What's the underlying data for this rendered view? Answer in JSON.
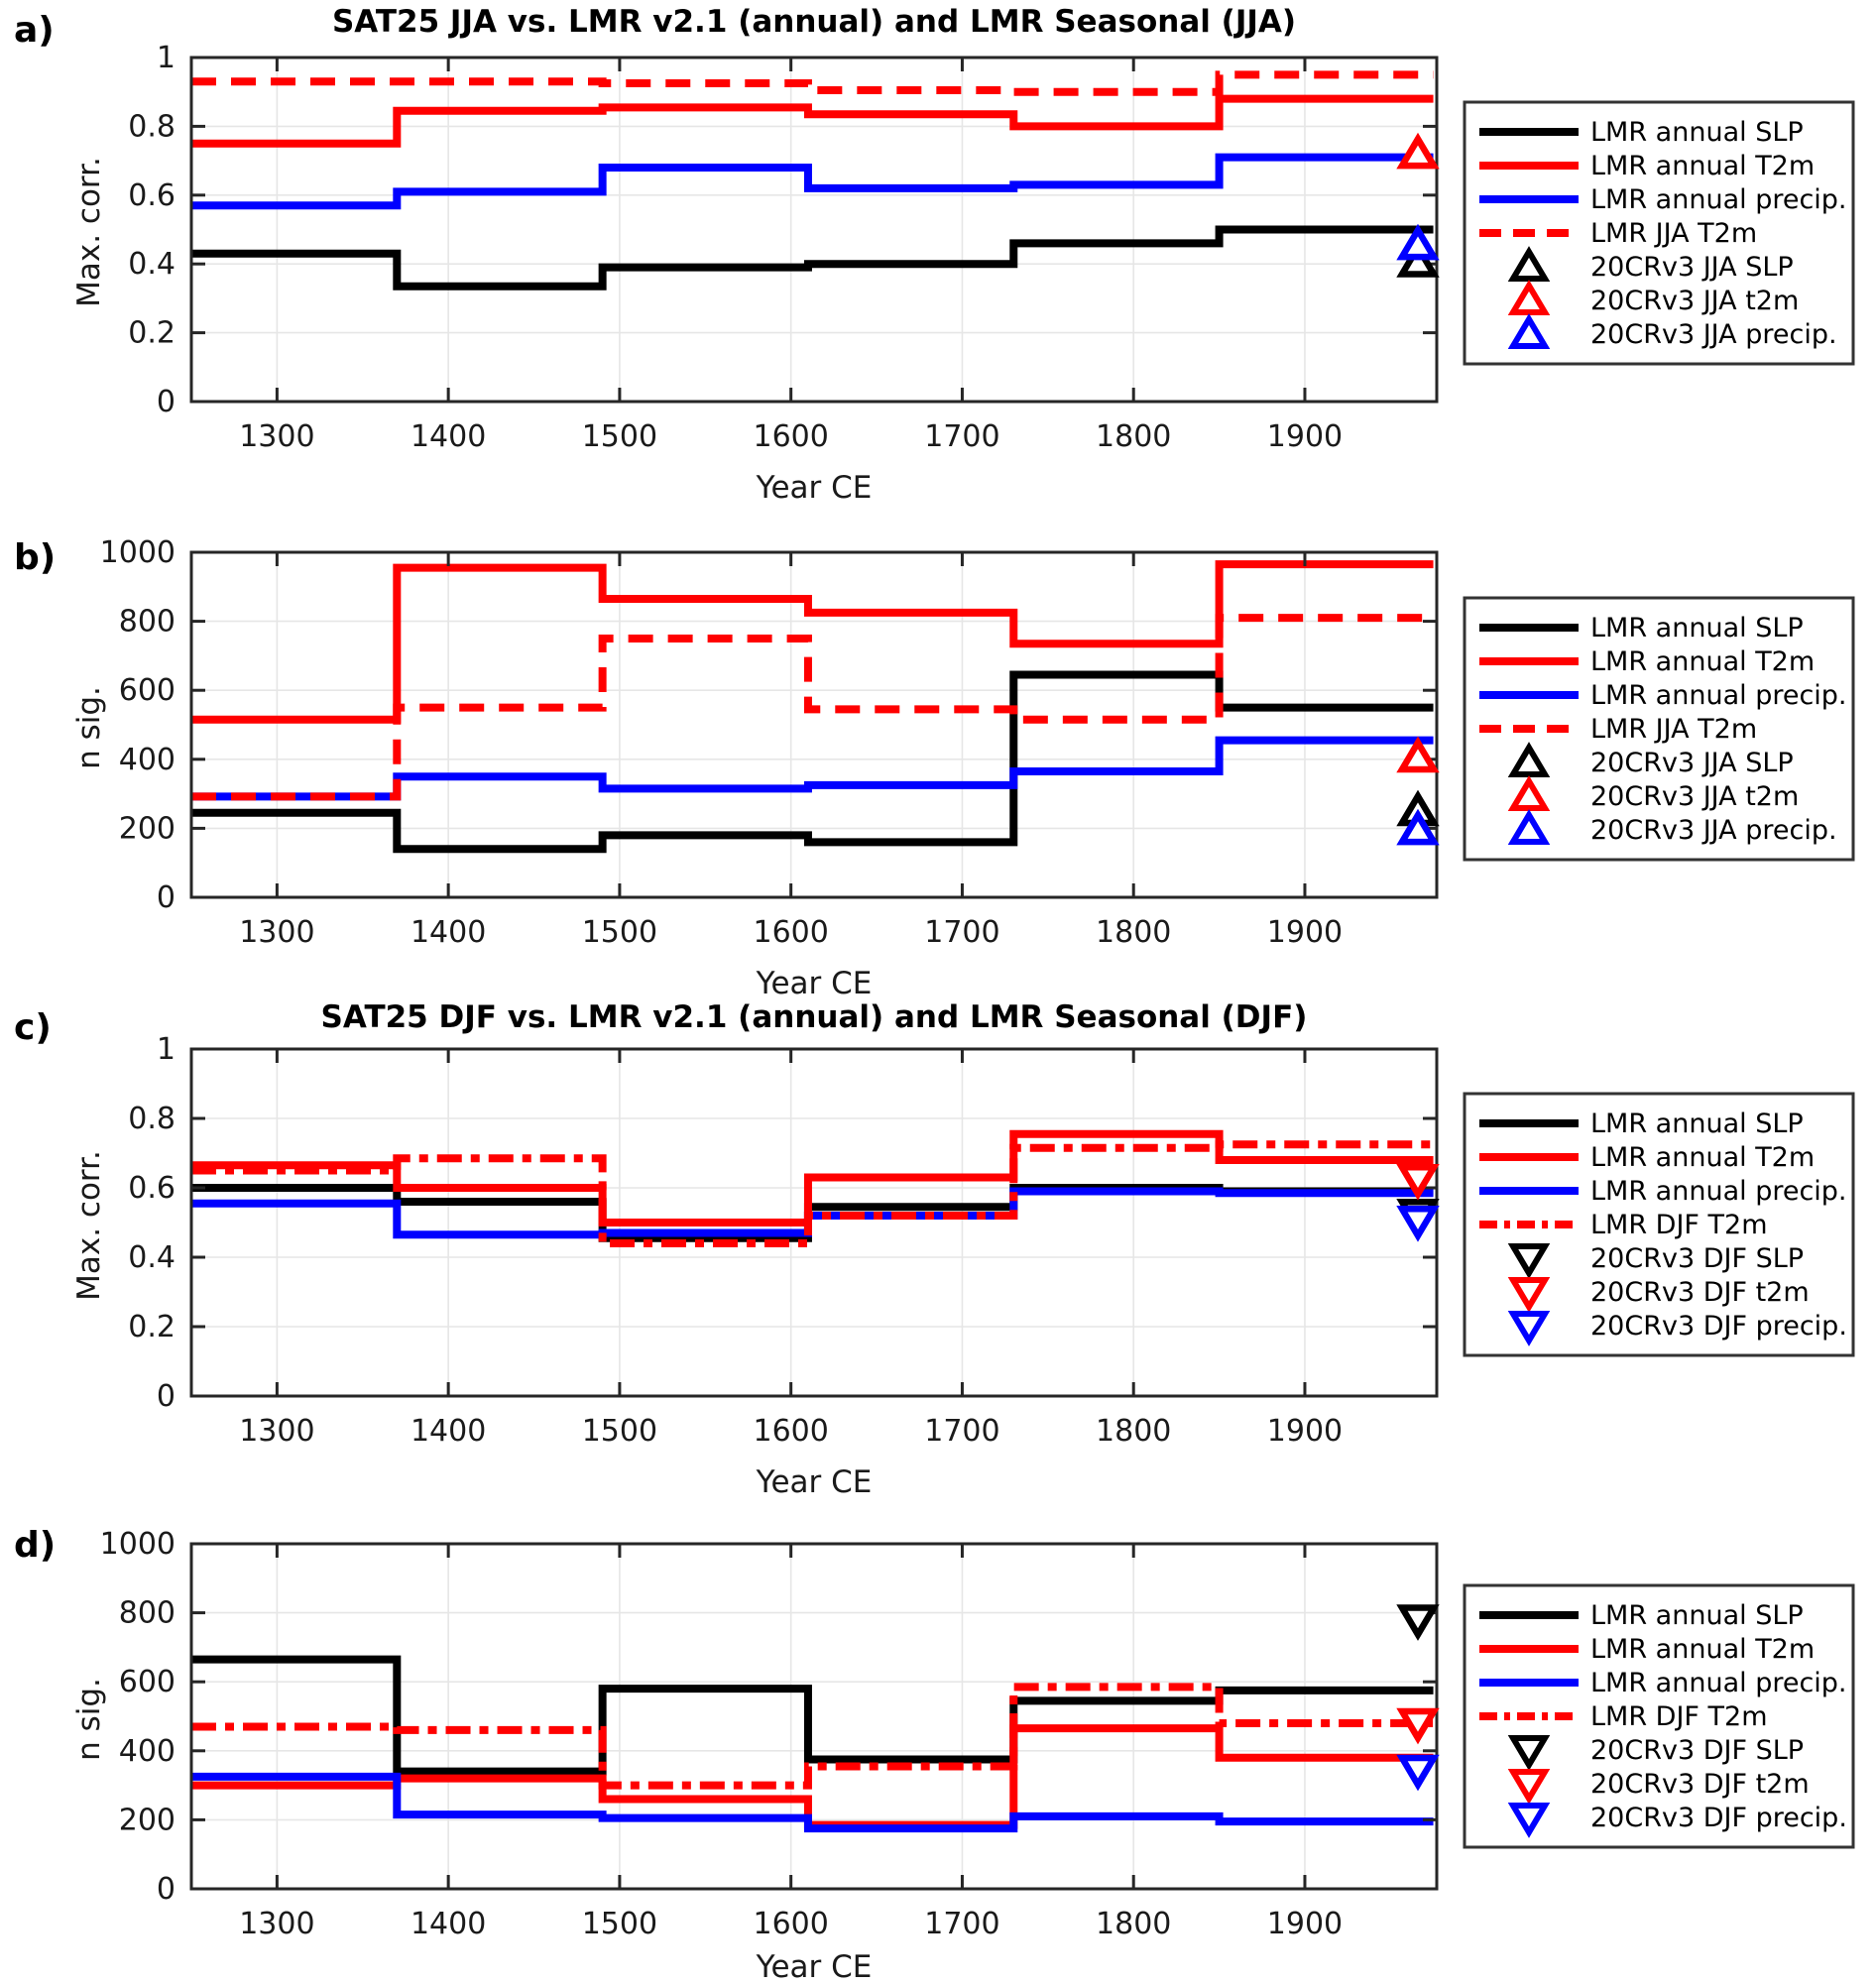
{
  "colors": {
    "slp": "#000000",
    "t2m": "#ff0000",
    "precip": "#0000ff",
    "grid": "#e6e6e6",
    "frame": "#262626",
    "tick_text": "#1a1a1a",
    "legend_border": "#333333",
    "background": "#ffffff"
  },
  "figure": {
    "x_ticks": [
      1300,
      1400,
      1500,
      1600,
      1700,
      1800,
      1900
    ],
    "x_axis_range": [
      1250,
      1977
    ],
    "bin_edges": [
      1250,
      1370,
      1490,
      1610,
      1730,
      1850,
      1975
    ],
    "marker_year": 1966
  },
  "chart_data": [
    {
      "id": "a",
      "letter": "a)",
      "type": "line",
      "step": true,
      "title": "SAT25 JJA vs. LMR v2.1 (annual) and LMR Seasonal (JJA)",
      "xlabel": "Year CE",
      "ylabel": "Max. corr.",
      "ylim": [
        0,
        1
      ],
      "yticks": [
        "0",
        "0.2",
        "0.4",
        "0.6",
        "0.8",
        "1"
      ],
      "ytick_values": [
        0,
        0.2,
        0.4,
        0.6,
        0.8,
        1
      ],
      "grid": true,
      "legend_position": "right",
      "series": [
        {
          "name": "LMR annual SLP",
          "color_key": "slp",
          "style": "solid",
          "values": [
            0.43,
            0.335,
            0.39,
            0.4,
            0.46,
            0.5
          ]
        },
        {
          "name": "LMR annual T2m",
          "color_key": "t2m",
          "style": "solid",
          "values": [
            0.75,
            0.845,
            0.855,
            0.835,
            0.8,
            0.88
          ]
        },
        {
          "name": "LMR annual precip.",
          "color_key": "precip",
          "style": "solid",
          "values": [
            0.57,
            0.61,
            0.68,
            0.62,
            0.63,
            0.71
          ]
        },
        {
          "name": "LMR JJA T2m",
          "color_key": "t2m",
          "style": "dashed",
          "values": [
            0.93,
            0.93,
            0.925,
            0.905,
            0.9,
            0.95
          ]
        }
      ],
      "markers": {
        "shape": "triangle-up",
        "points": [
          {
            "name": "20CRv3 JJA SLP",
            "color_key": "slp",
            "value": 0.405
          },
          {
            "name": "20CRv3 JJA t2m",
            "color_key": "t2m",
            "value": 0.72
          },
          {
            "name": "20CRv3 JJA precip.",
            "color_key": "precip",
            "value": 0.455
          }
        ]
      }
    },
    {
      "id": "b",
      "letter": "b)",
      "type": "line",
      "step": true,
      "title": "",
      "xlabel": "Year CE",
      "ylabel": "n sig.",
      "ylim": [
        0,
        1000
      ],
      "yticks": [
        "0",
        "200",
        "400",
        "600",
        "800",
        "1000"
      ],
      "ytick_values": [
        0,
        200,
        400,
        600,
        800,
        1000
      ],
      "grid": true,
      "legend_position": "right",
      "series": [
        {
          "name": "LMR annual SLP",
          "color_key": "slp",
          "style": "solid",
          "values": [
            245,
            140,
            180,
            160,
            645,
            550
          ]
        },
        {
          "name": "LMR annual T2m",
          "color_key": "t2m",
          "style": "solid",
          "values": [
            515,
            955,
            865,
            825,
            735,
            965
          ]
        },
        {
          "name": "LMR annual precip.",
          "color_key": "precip",
          "style": "solid",
          "values": [
            292,
            350,
            315,
            325,
            365,
            455
          ]
        },
        {
          "name": "LMR JJA T2m",
          "color_key": "t2m",
          "style": "dashed",
          "values": [
            292,
            550,
            750,
            545,
            515,
            810
          ]
        }
      ],
      "markers": {
        "shape": "triangle-up",
        "points": [
          {
            "name": "20CRv3 JJA SLP",
            "color_key": "slp",
            "value": 250
          },
          {
            "name": "20CRv3 JJA t2m",
            "color_key": "t2m",
            "value": 405
          },
          {
            "name": "20CRv3 JJA precip.",
            "color_key": "precip",
            "value": 195
          }
        ]
      }
    },
    {
      "id": "c",
      "letter": "c)",
      "type": "line",
      "step": true,
      "title": "SAT25 DJF vs. LMR v2.1 (annual) and LMR Seasonal (DJF)",
      "xlabel": "Year CE",
      "ylabel": "Max. corr.",
      "ylim": [
        0,
        1
      ],
      "yticks": [
        "0",
        "0.2",
        "0.4",
        "0.6",
        "0.8",
        "1"
      ],
      "ytick_values": [
        0,
        0.2,
        0.4,
        0.6,
        0.8,
        1
      ],
      "grid": true,
      "legend_position": "right",
      "series": [
        {
          "name": "LMR annual SLP",
          "color_key": "slp",
          "style": "solid",
          "values": [
            0.6,
            0.56,
            0.455,
            0.545,
            0.6,
            0.59
          ]
        },
        {
          "name": "LMR annual T2m",
          "color_key": "t2m",
          "style": "solid",
          "values": [
            0.665,
            0.6,
            0.5,
            0.63,
            0.755,
            0.68
          ]
        },
        {
          "name": "LMR annual precip.",
          "color_key": "precip",
          "style": "solid",
          "values": [
            0.555,
            0.465,
            0.47,
            0.52,
            0.59,
            0.585
          ]
        },
        {
          "name": "LMR DJF T2m",
          "color_key": "t2m",
          "style": "dashdot",
          "values": [
            0.65,
            0.685,
            0.44,
            0.52,
            0.715,
            0.725
          ]
        }
      ],
      "markers": {
        "shape": "triangle-down",
        "points": [
          {
            "name": "20CRv3 DJF SLP",
            "color_key": "slp",
            "value": 0.525
          },
          {
            "name": "20CRv3 DJF t2m",
            "color_key": "t2m",
            "value": 0.625
          },
          {
            "name": "20CRv3 DJF precip.",
            "color_key": "precip",
            "value": 0.505
          }
        ]
      }
    },
    {
      "id": "d",
      "letter": "d)",
      "type": "line",
      "step": true,
      "title": "",
      "xlabel": "Year CE",
      "ylabel": "n sig.",
      "ylim": [
        0,
        1000
      ],
      "yticks": [
        "0",
        "200",
        "400",
        "600",
        "800",
        "1000"
      ],
      "ytick_values": [
        0,
        200,
        400,
        600,
        800,
        1000
      ],
      "grid": true,
      "legend_position": "right",
      "series": [
        {
          "name": "LMR annual SLP",
          "color_key": "slp",
          "style": "solid",
          "values": [
            665,
            340,
            580,
            375,
            545,
            575
          ]
        },
        {
          "name": "LMR annual T2m",
          "color_key": "t2m",
          "style": "solid",
          "values": [
            300,
            320,
            260,
            185,
            465,
            380
          ]
        },
        {
          "name": "LMR annual precip.",
          "color_key": "precip",
          "style": "solid",
          "values": [
            325,
            215,
            205,
            175,
            210,
            195
          ]
        },
        {
          "name": "LMR DJF T2m",
          "color_key": "t2m",
          "style": "dashdot",
          "values": [
            470,
            460,
            300,
            355,
            585,
            480
          ]
        }
      ],
      "markers": {
        "shape": "triangle-down",
        "points": [
          {
            "name": "20CRv3 DJF SLP",
            "color_key": "slp",
            "value": 780
          },
          {
            "name": "20CRv3 DJF t2m",
            "color_key": "t2m",
            "value": 480
          },
          {
            "name": "20CRv3 DJF precip.",
            "color_key": "precip",
            "value": 345
          }
        ]
      }
    }
  ]
}
